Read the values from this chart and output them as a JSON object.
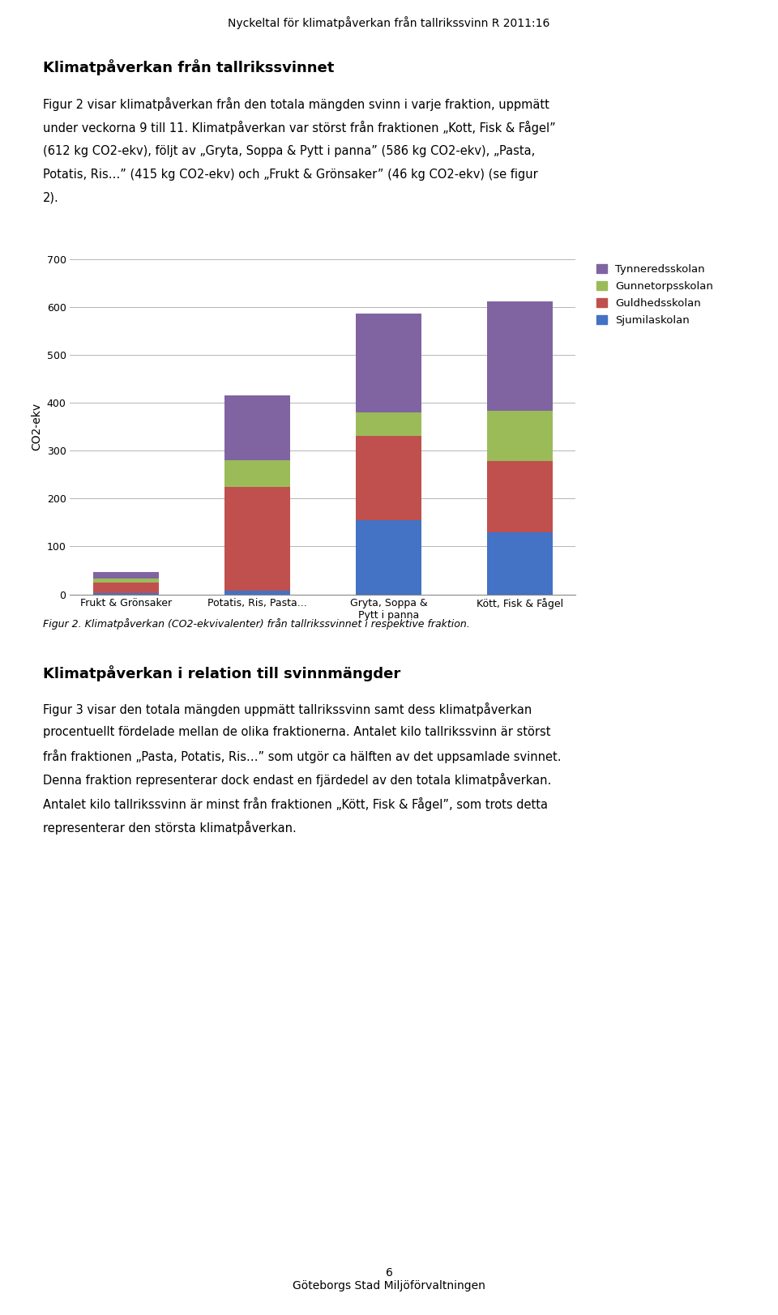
{
  "categories": [
    "Frukt & Grönsaker",
    "Potatis, Ris, Pasta...",
    "Gryta, Soppa &\nPytt i panna",
    "Kött, Fisk & Fågel"
  ],
  "schools": [
    "Sjumilaskolan",
    "Guldhedsskolan",
    "Gunnetorpsskolan",
    "Tynneredsskolan"
  ],
  "colors": [
    "#4472C4",
    "#C0504D",
    "#9BBB59",
    "#8064A2"
  ],
  "values": [
    [
      3,
      22,
      8,
      13
    ],
    [
      7,
      218,
      55,
      135
    ],
    [
      155,
      175,
      50,
      206
    ],
    [
      130,
      148,
      105,
      229
    ]
  ],
  "ylabel": "CO2-ekv",
  "ylim": [
    0,
    700
  ],
  "yticks": [
    0,
    100,
    200,
    300,
    400,
    500,
    600,
    700
  ],
  "page_header": "Nyckeltal för klimatpåverkan från tallrikssvinn R 2011:16",
  "section_title": "Klimatpåverkan från tallrikssvinnet",
  "body_line1": "Figur 2 visar klimatpåverkan från den totala mängden svinn i varje fraktion, uppmätt",
  "body_line2": "under veckorna 9 till 11. Klimatpåverkan var störst från fraktionen „Kott, Fisk & Fågel”",
  "body_line3": "(612 kg CO2-ekv), följt av „Gryta, Soppa & Pytt i panna” (586 kg CO2-ekv), „Pasta,",
  "body_line4": "Potatis, Ris…” (415 kg CO2-ekv) och „Frukt & Grönsaker” (46 kg CO2-ekv) (se figur",
  "body_line5": "2).",
  "figcaption": "Figur 2. Klimatpåverkan (CO2-ekvivalenter) från tallrikssvinnet i respektive fraktion.",
  "section_title_2": "Klimatpåverkan i relation till svinnmängder",
  "body2_line1": "Figur 3 visar den totala mängden uppmätt tallrikssvinn samt dess klimatpåverkan",
  "body2_line2": "procentuellt fördelade mellan de olika fraktionerna. Antalet kilo tallrikssvinn är störst",
  "body2_line3": "från fraktionen „Pasta, Potatis, Ris…” som utgör ca hälften av det uppsamlade svinnet.",
  "body2_line4": "Denna fraktion representerar dock endast en fjärdedel av den totala klimatpåverkan.",
  "body2_line5": "Antalet kilo tallrikssvinn är minst från fraktionen „Kött, Fisk & Fågel”, som trots detta",
  "body2_line6": "representerar den största klimatpåverkan.",
  "page_number": "6",
  "footer_text": "Göteborgs Stad Miljöförvaltningen"
}
